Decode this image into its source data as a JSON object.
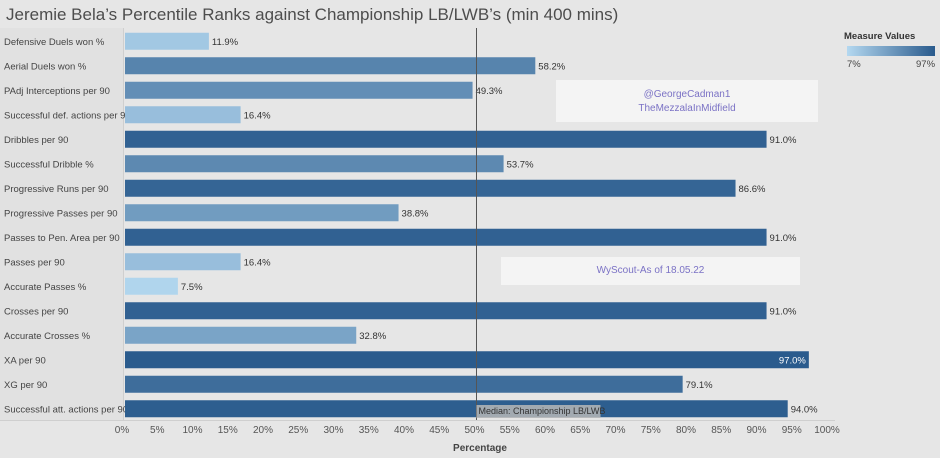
{
  "chart_data": {
    "type": "bar",
    "orientation": "horizontal",
    "title": "Jeremie Bela’s Percentile Ranks against Championship LB/LWB’s (min 400 mins)",
    "xlabel": "Percentage",
    "xlim": [
      0,
      100
    ],
    "xticks": [
      "0%",
      "5%",
      "10%",
      "15%",
      "20%",
      "25%",
      "30%",
      "35%",
      "40%",
      "45%",
      "50%",
      "55%",
      "60%",
      "65%",
      "70%",
      "75%",
      "80%",
      "85%",
      "90%",
      "95%",
      "100%"
    ],
    "categories": [
      "Defensive Duels won %",
      "Aerial Duels won %",
      "PAdj Interceptions per 90",
      "Successful def. actions per 90",
      "Dribbles per 90",
      "Successful Dribble %",
      "Progressive Runs per 90",
      "Progressive Passes per 90",
      "Passes to Pen. Area per 90",
      "Passes per 90",
      "Accurate Passes %",
      "Crosses per 90",
      "Accurate Crosses %",
      "XA per 90",
      "XG per 90",
      "Successful att. actions per 90"
    ],
    "values": [
      11.9,
      58.2,
      49.3,
      16.4,
      91.0,
      53.7,
      86.6,
      38.8,
      91.0,
      16.4,
      7.5,
      91.0,
      32.8,
      97.0,
      79.1,
      94.0
    ],
    "value_labels": [
      "11.9%",
      "58.2%",
      "49.3%",
      "16.4%",
      "91.0%",
      "53.7%",
      "86.6%",
      "38.8%",
      "91.0%",
      "16.4%",
      "7.5%",
      "91.0%",
      "32.8%",
      "97.0%",
      "79.1%",
      "94.0%"
    ],
    "reference_line": {
      "value": 50,
      "label": "Median: Championship LB/LWB"
    },
    "color_scale": {
      "title": "Measure Values",
      "min_label": "7%",
      "max_label": "97%",
      "min": 7,
      "max": 97,
      "low_color": "#b4d8f0",
      "high_color": "#2a5b8d"
    },
    "grid": false
  },
  "annotations": {
    "credit_line1": "@GeorgeCadman1",
    "credit_line2": "TheMezzalaInMidfield",
    "source": "WyScout-As of 18.05.22"
  }
}
